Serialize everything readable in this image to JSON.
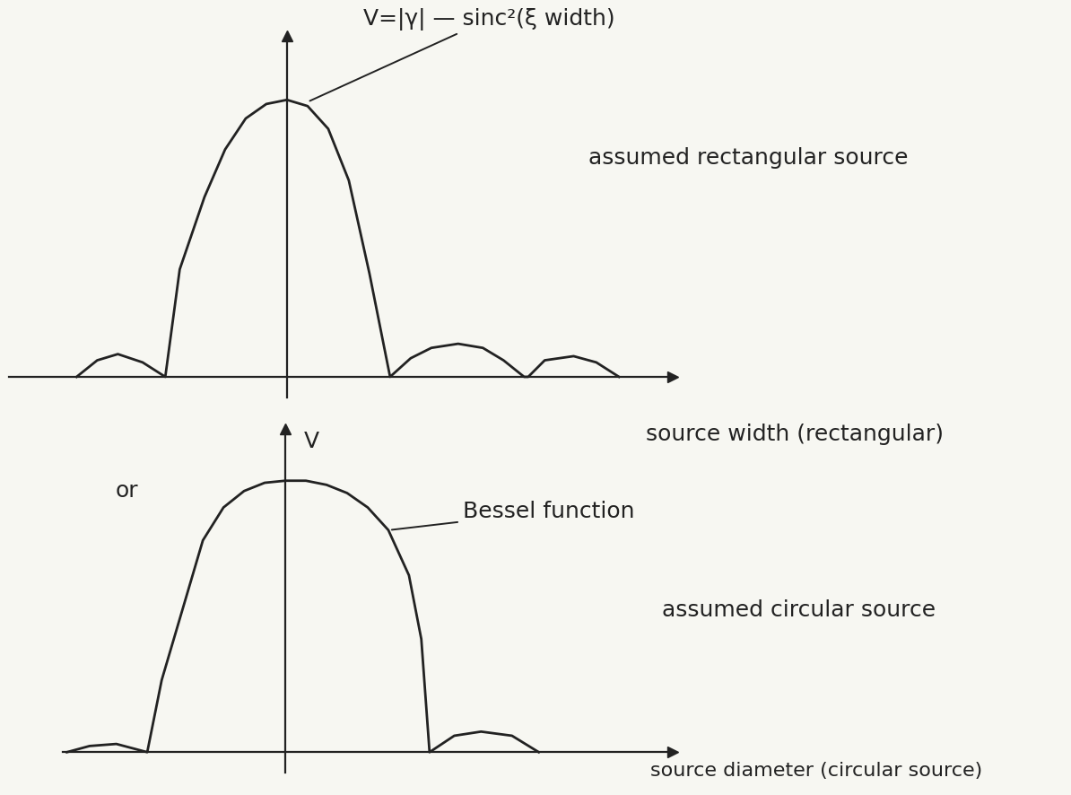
{
  "chart_data": [
    {
      "type": "line",
      "annotations": [
        "V=|γ| — sinc²(ξ width)",
        "assumed rectangular source"
      ],
      "xlabel": "source width (rectangular)",
      "x": [
        -10.2,
        -9.2,
        -8.2,
        -7,
        -5.9,
        -5.2,
        -4,
        -3,
        -2,
        -1,
        0,
        1,
        2,
        3,
        4,
        5,
        6,
        7,
        8.3,
        9.5,
        10.5,
        11.5,
        11.7,
        12.5,
        13.9,
        15,
        16.1
      ],
      "values": [
        0,
        0.8,
        1.1,
        0.7,
        0,
        5.2,
        8.7,
        11,
        12.5,
        13.2,
        13.4,
        13.1,
        12,
        9.5,
        5,
        0,
        0.9,
        1.4,
        1.6,
        1.4,
        0.8,
        0,
        0,
        0.8,
        1.0,
        0.7,
        0
      ],
      "color": "#222222",
      "xlim": [
        -13.5,
        18.7
      ],
      "ylim": [
        -1,
        16.5
      ],
      "xticks": [],
      "yticks": [],
      "tick_labels": false
    },
    {
      "type": "line",
      "ylabel": "V",
      "annotations": [
        "or",
        "Bessel function",
        "assumed circular source"
      ],
      "xlabel": "source diameter (circular source)",
      "x": [
        -10.6,
        -9.5,
        -8.2,
        -6.7,
        -6,
        -5,
        -4,
        -3,
        -2,
        -1,
        0,
        1,
        2,
        3,
        4,
        5,
        6,
        6.6,
        7,
        8.2,
        9.5,
        11,
        12.3
      ],
      "values": [
        0,
        0.3,
        0.4,
        0,
        3.5,
        6.9,
        10.3,
        11.9,
        12.7,
        13.1,
        13.2,
        13.2,
        13.0,
        12.6,
        11.9,
        10.8,
        8.6,
        5.5,
        0,
        0.8,
        1.0,
        0.8,
        0
      ],
      "color": "#222222",
      "xlim": [
        -10.8,
        18.8
      ],
      "ylim": [
        -1,
        15.7
      ],
      "xticks": [],
      "yticks": [],
      "tick_labels": false
    }
  ]
}
